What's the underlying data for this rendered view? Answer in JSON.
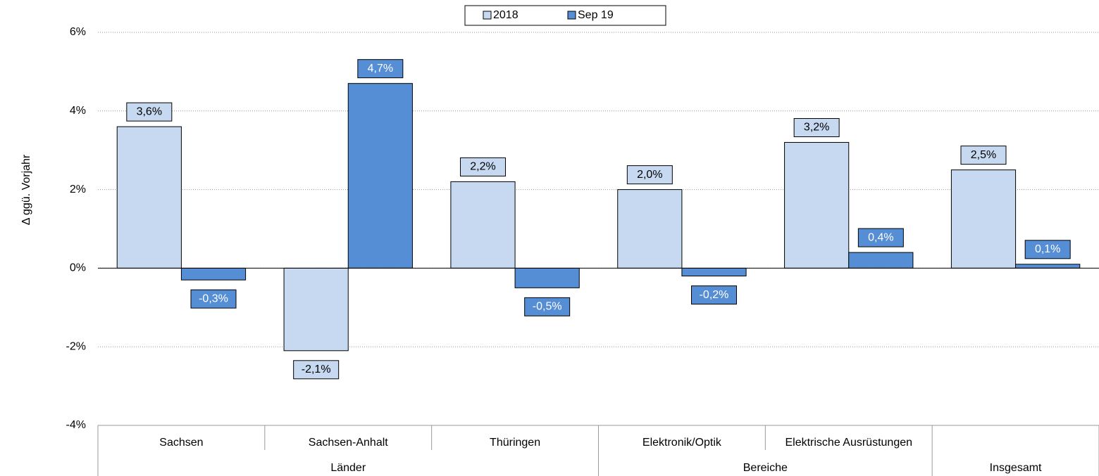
{
  "chart_data": {
    "type": "bar",
    "y_label": "Δ ggü. Vorjahr",
    "categories": [
      "Sachsen",
      "Sachsen-Anhalt",
      "Thüringen",
      "Elektronik/Optik",
      "Elektrische Ausrüstungen",
      null
    ],
    "category_groups": [
      "Länder",
      "Länder",
      "Länder",
      "Bereiche",
      "Bereiche",
      "Insgesamt"
    ],
    "series": [
      {
        "name": "2018",
        "color": "#c6d9f1",
        "values": [
          3.6,
          -2.1,
          2.2,
          2.0,
          3.2,
          2.5
        ],
        "value_labels": [
          "3,6%",
          "-2,1%",
          "2,2%",
          "2,0%",
          "3,2%",
          "2,5%"
        ]
      },
      {
        "name": "Sep 19",
        "color": "#558ed5",
        "values": [
          -0.3,
          4.7,
          -0.5,
          -0.2,
          0.4,
          0.1
        ],
        "value_labels": [
          "-0,3%",
          "4,7%",
          "-0,5%",
          "-0,2%",
          "0,4%",
          "0,1%"
        ]
      }
    ],
    "ylim": [
      -4,
      6
    ],
    "yticks": [
      {
        "value": -4,
        "label": "-4%"
      },
      {
        "value": -2,
        "label": "-2%"
      },
      {
        "value": 0,
        "label": "0%"
      },
      {
        "value": 2,
        "label": "2%"
      },
      {
        "value": 4,
        "label": "4%"
      },
      {
        "value": 6,
        "label": "6%"
      }
    ],
    "grid": true,
    "legend": "top"
  }
}
